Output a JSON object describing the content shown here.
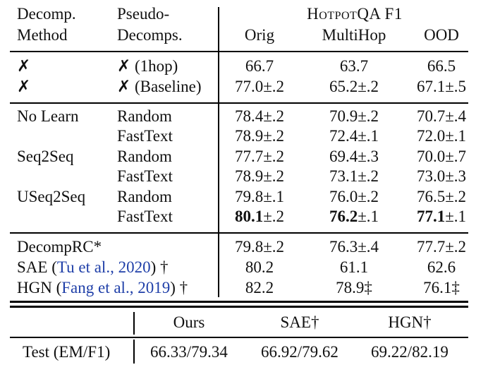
{
  "header": {
    "method_line1": "Decomp.",
    "method_line2": "Method",
    "pseudo_line1": "Pseudo-",
    "pseudo_line2": "Decomps.",
    "group_title": "HotpotQA F1",
    "col_orig": "Orig",
    "col_multihop": "MultiHop",
    "col_ood": "OOD"
  },
  "rows": [
    {
      "method": "✗",
      "pseudo": "✗ (1hop)",
      "orig": "66.7",
      "multihop": "63.7",
      "ood": "66.5"
    },
    {
      "method": "✗",
      "pseudo": "✗ (Baseline)",
      "orig": "77.0±.2",
      "multihop": "65.2±.2",
      "ood": "67.1±.5"
    },
    {
      "method": "No Learn",
      "pseudo": "Random",
      "orig": "78.4±.2",
      "multihop": "70.9±.2",
      "ood": "70.7±.4"
    },
    {
      "method": "",
      "pseudo": "FastText",
      "orig": "78.9±.2",
      "multihop": "72.4±.1",
      "ood": "72.0±.1"
    },
    {
      "method": "Seq2Seq",
      "pseudo": "Random",
      "orig": "77.7±.2",
      "multihop": "69.4±.3",
      "ood": "70.0±.7"
    },
    {
      "method": "",
      "pseudo": "FastText",
      "orig": "78.9±.2",
      "multihop": "73.1±.2",
      "ood": "73.0±.3"
    },
    {
      "method": "USeq2Seq",
      "pseudo": "Random",
      "orig": "79.8±.1",
      "multihop": "76.0±.2",
      "ood": "76.5±.2"
    },
    {
      "method": "",
      "pseudo": "FastText",
      "orig_bold": "80.1",
      "orig_rest": "±.2",
      "multihop_bold": "76.2",
      "multihop_rest": "±.1",
      "ood_bold": "77.1",
      "ood_rest": "±.1"
    },
    {
      "method": "DecompRC*",
      "orig": "79.8±.2",
      "multihop": "76.3±.4",
      "ood": "77.7±.2"
    },
    {
      "method_pre": "SAE (",
      "method_cite": "Tu et al., 2020",
      "method_post": ") †",
      "orig": "80.2",
      "multihop": "61.1",
      "ood": "62.6"
    },
    {
      "method_pre": "HGN (",
      "method_cite": "Fang et al., 2019",
      "method_post": ") †",
      "orig": "82.2",
      "multihop": "78.9‡",
      "ood": "76.1‡"
    }
  ],
  "test_table": {
    "col_ours": "Ours",
    "col_sae": "SAE†",
    "col_hgn": "HGN†",
    "row_label": "Test (EM/F1)",
    "ours": "66.33/79.34",
    "sae": "66.92/79.62",
    "hgn": "69.22/82.19"
  }
}
